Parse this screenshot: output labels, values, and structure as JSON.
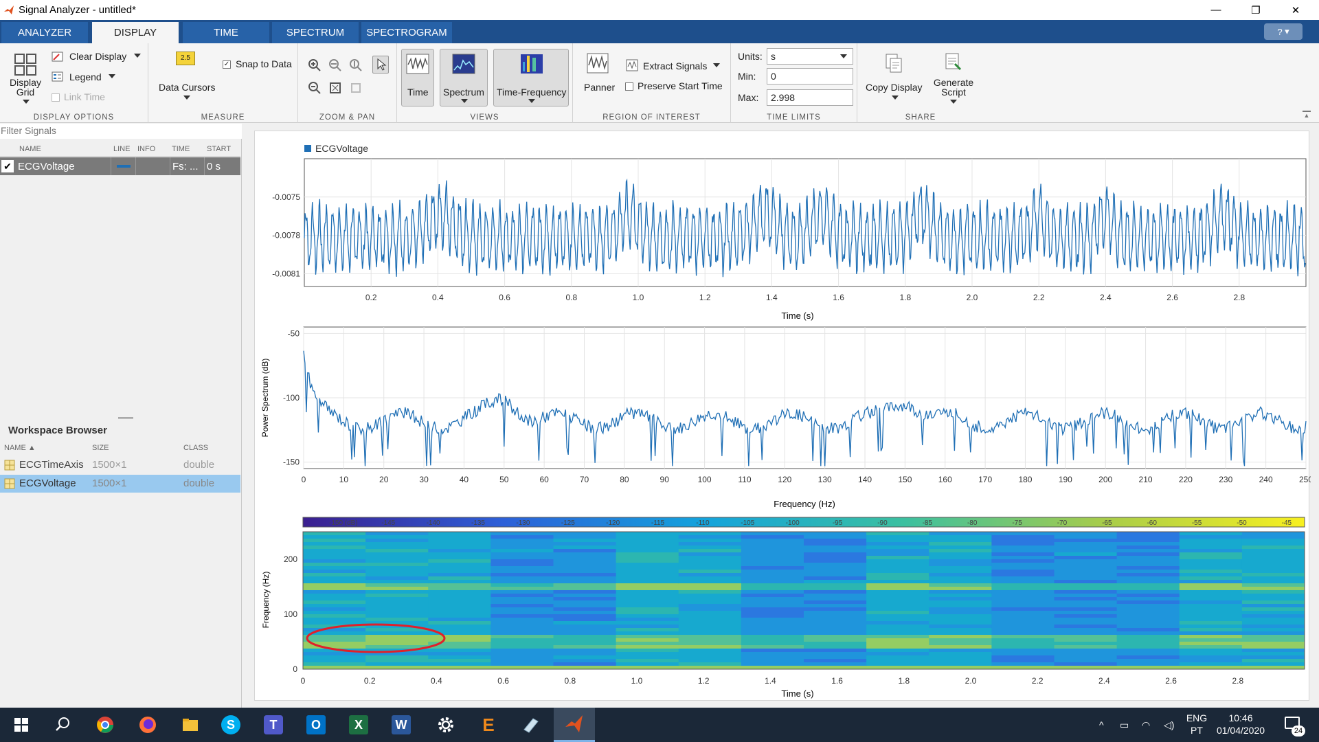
{
  "window": {
    "title": "Signal Analyzer - untitled*",
    "minimize": "—",
    "restore": "❐",
    "close": "✕"
  },
  "tabs": [
    {
      "label": "ANALYZER"
    },
    {
      "label": "DISPLAY"
    },
    {
      "label": "TIME"
    },
    {
      "label": "SPECTRUM"
    },
    {
      "label": "SPECTROGRAM"
    }
  ],
  "help": {
    "label": "?"
  },
  "ribbon": {
    "display_options": {
      "title": "DISPLAY OPTIONS",
      "display_grid": "Display Grid",
      "display_grid_line1": "Display",
      "display_grid_line2": "Grid",
      "clear_display": "Clear Display",
      "legend": "Legend",
      "link_time": "Link Time"
    },
    "measure": {
      "title": "MEASURE",
      "cursor_badge": "2.5",
      "data_cursors": "Data Cursors",
      "snap_to_data": "Snap to Data"
    },
    "zoom_pan": {
      "title": "ZOOM & PAN"
    },
    "views": {
      "title": "VIEWS",
      "time": "Time",
      "spectrum": "Spectrum",
      "time_frequency": "Time-Frequency"
    },
    "roi": {
      "title": "REGION OF INTEREST",
      "panner": "Panner",
      "extract_signals": "Extract Signals",
      "preserve_start_time": "Preserve Start Time"
    },
    "time_limits": {
      "title": "TIME LIMITS",
      "units_label": "Units:",
      "units_value": "s",
      "min_label": "Min:",
      "min_value": "0",
      "max_label": "Max:",
      "max_value": "2.998"
    },
    "share": {
      "title": "SHARE",
      "copy_display": "Copy Display",
      "generate_script_line1": "Generate",
      "generate_script_line2": "Script"
    }
  },
  "signals_panel": {
    "filter_placeholder": "Filter Signals",
    "columns": [
      "NAME",
      "LINE",
      "INFO",
      "TIME",
      "START"
    ],
    "rows": [
      {
        "name": "ECGVoltage",
        "checked": "✔",
        "info": "",
        "time": "Fs: ...",
        "start": "0 s"
      }
    ]
  },
  "workspace_browser": {
    "title": "Workspace Browser",
    "columns": [
      "NAME ▲",
      "SIZE",
      "CLASS"
    ],
    "rows": [
      {
        "name": "ECGTimeAxis",
        "size": "1500×1",
        "class": "double"
      },
      {
        "name": "ECGVoltage",
        "size": "1500×1",
        "class": "double"
      }
    ]
  },
  "colors": {
    "signal": "#1f6fb5",
    "selection": "#99c9ef",
    "annotation": "#e0202a"
  },
  "chart_data": [
    {
      "type": "line",
      "legend": [
        "ECGVoltage"
      ],
      "xlabel": "Time (s)",
      "ylabel": "",
      "xlim": [
        0,
        2.998
      ],
      "ylim": [
        -0.0082,
        -0.0072
      ],
      "xticks": [
        "0.2",
        "0.4",
        "0.6",
        "0.8",
        "1.0",
        "1.2",
        "1.4",
        "1.6",
        "1.8",
        "2.0",
        "2.2",
        "2.4",
        "2.6",
        "2.8"
      ],
      "yticks": [
        "-0.0075",
        "-0.0078",
        "-0.0081"
      ],
      "grid": true
    },
    {
      "type": "line",
      "xlabel": "Frequency (Hz)",
      "ylabel": "Power Spectrum (dB)",
      "xlim": [
        0,
        250
      ],
      "ylim": [
        -155,
        -45
      ],
      "xticks": [
        "0",
        "10",
        "20",
        "30",
        "40",
        "50",
        "60",
        "70",
        "80",
        "90",
        "100",
        "110",
        "120",
        "130",
        "140",
        "150",
        "160",
        "170",
        "180",
        "190",
        "200",
        "210",
        "220",
        "230",
        "240",
        "250"
      ],
      "yticks": [
        "-50",
        "-100",
        "-150"
      ],
      "grid": true
    },
    {
      "type": "heatmap",
      "xlabel": "Time (s)",
      "ylabel": "Frequency (Hz)",
      "xlim": [
        0,
        3
      ],
      "ylim": [
        0,
        250
      ],
      "xticks": [
        "0",
        "0.2",
        "0.4",
        "0.6",
        "0.8",
        "1.0",
        "1.2",
        "1.4",
        "1.6",
        "1.8",
        "2.0",
        "2.2",
        "2.4",
        "2.6",
        "2.8"
      ],
      "yticks": [
        "200",
        "100",
        "0"
      ],
      "colorbar": [
        "-150 (dB)",
        "-145",
        "-140",
        "-135",
        "-130",
        "-125",
        "-120",
        "-115",
        "-110",
        "-105",
        "-100",
        "-95",
        "-90",
        "-85",
        "-80",
        "-75",
        "-70",
        "-65",
        "-60",
        "-55",
        "-50",
        "-45"
      ],
      "annotation": "ellipse highlighting band near 50 Hz, 0–0.5 s"
    }
  ],
  "taskbar": {
    "lang1": "ENG",
    "lang2": "PT",
    "time": "10:46",
    "date": "01/04/2020",
    "notifications": "24",
    "excel": "X",
    "word": "W",
    "outlook": "O",
    "skype": "S",
    "teams": "T",
    "e_app": "E"
  }
}
